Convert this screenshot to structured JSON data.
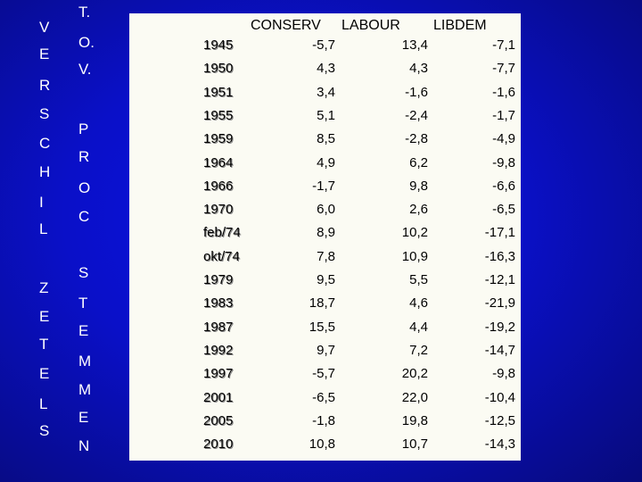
{
  "side_labels": {
    "left_letters": [
      "V",
      "E",
      "R",
      "S",
      "C",
      "H",
      "I",
      "L",
      "Z",
      "E",
      "T",
      "E",
      "L",
      "S"
    ],
    "right_letters": [
      "T.",
      "O.",
      "V.",
      "P",
      "R",
      "O",
      "C",
      "S",
      "T",
      "E",
      "M",
      "M",
      "E",
      "N"
    ]
  },
  "table": {
    "headers": [
      "CONSERV",
      "LABOUR",
      "LIBDEM"
    ],
    "rows": [
      {
        "year": "1945",
        "conserv": "-5,7",
        "labour": "13,4",
        "libdem": "-7,1"
      },
      {
        "year": "1950",
        "conserv": "4,3",
        "labour": "4,3",
        "libdem": "-7,7"
      },
      {
        "year": "1951",
        "conserv": "3,4",
        "labour": "-1,6",
        "libdem": "-1,6"
      },
      {
        "year": "1955",
        "conserv": "5,1",
        "labour": "-2,4",
        "libdem": "-1,7"
      },
      {
        "year": "1959",
        "conserv": "8,5",
        "labour": "-2,8",
        "libdem": "-4,9"
      },
      {
        "year": "1964",
        "conserv": "4,9",
        "labour": "6,2",
        "libdem": "-9,8"
      },
      {
        "year": "1966",
        "conserv": "-1,7",
        "labour": "9,8",
        "libdem": "-6,6"
      },
      {
        "year": "1970",
        "conserv": "6,0",
        "labour": "2,6",
        "libdem": "-6,5"
      },
      {
        "year": "feb/74",
        "conserv": "8,9",
        "labour": "10,2",
        "libdem": "-17,1"
      },
      {
        "year": "okt/74",
        "conserv": "7,8",
        "labour": "10,9",
        "libdem": "-16,3"
      },
      {
        "year": "1979",
        "conserv": "9,5",
        "labour": "5,5",
        "libdem": "-12,1"
      },
      {
        "year": "1983",
        "conserv": "18,7",
        "labour": "4,6",
        "libdem": "-21,9"
      },
      {
        "year": "1987",
        "conserv": "15,5",
        "labour": "4,4",
        "libdem": "-19,2"
      },
      {
        "year": "1992",
        "conserv": "9,7",
        "labour": "7,2",
        "libdem": "-14,7"
      },
      {
        "year": "1997",
        "conserv": "-5,7",
        "labour": "20,2",
        "libdem": "-9,8"
      },
      {
        "year": "2001",
        "conserv": "-6,5",
        "labour": "22,0",
        "libdem": "-10,4"
      },
      {
        "year": "2005",
        "conserv": "-1,8",
        "labour": "19,8",
        "libdem": "-12,5"
      },
      {
        "year": "2010",
        "conserv": "10,8",
        "labour": "10,7",
        "libdem": "-14,3"
      }
    ]
  }
}
